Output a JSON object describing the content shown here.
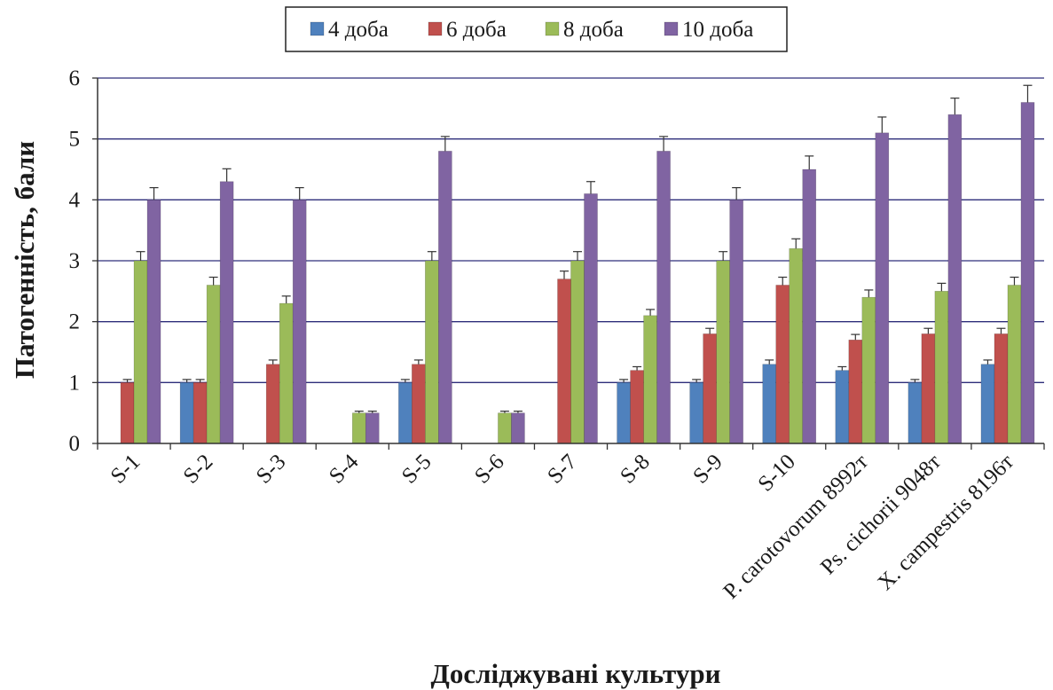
{
  "chart_data": {
    "type": "bar",
    "title": "",
    "xlabel": "Досліджувані культури",
    "ylabel": "Патогенність, бали",
    "ylim": [
      0,
      6
    ],
    "yticks": [
      "0",
      "1",
      "2",
      "3",
      "4",
      "5",
      "6"
    ],
    "grid": true,
    "legend_position": "top",
    "categories": [
      "S-1",
      "S-2",
      "S-3",
      "S-4",
      "S-5",
      "S-6",
      "S-7",
      "S-8",
      "S-9",
      "S-10",
      "P. carotovorum 8992т",
      "Ps. cichorii 9048т",
      "X. campestris 8196т"
    ],
    "series": [
      {
        "name": "4 доба",
        "color": "#4f81bd",
        "values": [
          0,
          1.0,
          0,
          0,
          1.0,
          0,
          0,
          1.0,
          1.0,
          1.3,
          1.2,
          1.0,
          1.3
        ],
        "errors": [
          0,
          0.05,
          0,
          0,
          0.05,
          0,
          0,
          0.05,
          0.05,
          0.07,
          0.06,
          0.05,
          0.07
        ]
      },
      {
        "name": "6 доба",
        "color": "#c0504d",
        "values": [
          1.0,
          1.0,
          1.3,
          0,
          1.3,
          0,
          2.7,
          1.2,
          1.8,
          2.6,
          1.7,
          1.8,
          1.8
        ],
        "errors": [
          0.05,
          0.05,
          0.07,
          0,
          0.07,
          0,
          0.13,
          0.06,
          0.09,
          0.13,
          0.09,
          0.09,
          0.09
        ]
      },
      {
        "name": "8 доба",
        "color": "#9bbb59",
        "values": [
          3.0,
          2.6,
          2.3,
          0.5,
          3.0,
          0.5,
          3.0,
          2.1,
          3.0,
          3.2,
          2.4,
          2.5,
          2.6
        ],
        "errors": [
          0.15,
          0.13,
          0.12,
          0.03,
          0.15,
          0.03,
          0.15,
          0.1,
          0.15,
          0.16,
          0.12,
          0.13,
          0.13
        ]
      },
      {
        "name": "10 доба",
        "color": "#8064a2",
        "values": [
          4.0,
          4.3,
          4.0,
          0.5,
          4.8,
          0.5,
          4.1,
          4.8,
          4.0,
          4.5,
          5.1,
          5.4,
          5.6
        ],
        "errors": [
          0.2,
          0.21,
          0.2,
          0.03,
          0.24,
          0.03,
          0.2,
          0.24,
          0.2,
          0.22,
          0.26,
          0.27,
          0.28
        ]
      }
    ],
    "gridline_color": "#2e2e7a",
    "axis_color": "#333333"
  }
}
